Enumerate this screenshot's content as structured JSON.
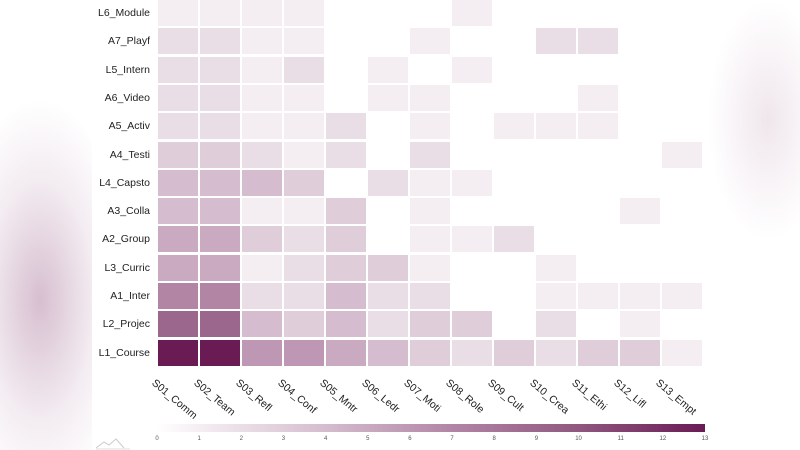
{
  "chart_data": {
    "type": "heatmap",
    "title": "",
    "xlabel": "",
    "ylabel": "",
    "x_categories": [
      "S01_Comm",
      "S02_Team",
      "S03_Refl",
      "S04_Conf",
      "S05_Mntr",
      "S06_Ledr",
      "S07_Moti",
      "S08_Role",
      "S09_Cult",
      "S10_Crea",
      "S11_Ethi",
      "S12_Lifl",
      "S13_Empt"
    ],
    "y_categories": [
      "L6_Module",
      "A7_Playf",
      "L5_Intern",
      "A6_Video",
      "A5_Activ",
      "A4_Testi",
      "L4_Capsto",
      "A3_Colla",
      "A2_Group",
      "L3_Curric",
      "A1_Inter",
      "L2_Projec",
      "L1_Course"
    ],
    "values": [
      [
        1,
        1,
        1,
        1,
        null,
        null,
        null,
        1,
        null,
        null,
        null,
        null,
        null
      ],
      [
        2,
        2,
        1,
        1,
        null,
        null,
        1,
        null,
        null,
        2,
        2,
        null,
        null
      ],
      [
        2,
        2,
        1,
        2,
        null,
        1,
        null,
        1,
        null,
        null,
        null,
        null,
        null
      ],
      [
        2,
        2,
        1,
        1,
        null,
        1,
        1,
        null,
        null,
        null,
        1,
        null,
        null
      ],
      [
        2,
        2,
        1,
        1,
        2,
        null,
        1,
        null,
        1,
        1,
        1,
        null,
        null
      ],
      [
        3,
        3,
        2,
        1,
        2,
        null,
        2,
        null,
        null,
        null,
        null,
        null,
        1
      ],
      [
        4,
        4,
        4,
        3,
        null,
        2,
        1,
        1,
        null,
        null,
        null,
        null,
        null
      ],
      [
        4,
        4,
        1,
        1,
        3,
        null,
        1,
        null,
        null,
        null,
        null,
        1,
        null
      ],
      [
        5,
        5,
        3,
        2,
        3,
        null,
        1,
        1,
        2,
        null,
        null,
        null,
        null
      ],
      [
        5,
        5,
        1,
        2,
        3,
        3,
        1,
        null,
        null,
        1,
        null,
        null,
        null
      ],
      [
        7,
        7,
        2,
        2,
        4,
        2,
        2,
        null,
        null,
        1,
        1,
        1,
        1
      ],
      [
        9,
        9,
        4,
        3,
        4,
        2,
        3,
        3,
        null,
        2,
        null,
        1,
        null
      ],
      [
        13,
        13,
        6,
        6,
        5,
        4,
        3,
        2,
        3,
        2,
        3,
        3,
        1
      ]
    ],
    "colorbar": {
      "min": 0,
      "max": 13,
      "ticks": [
        "0",
        "1",
        "2",
        "3",
        "4",
        "5",
        "6",
        "7",
        "8",
        "9",
        "10",
        "11",
        "12",
        "13"
      ],
      "position": "bottom",
      "color_low": "#ffffff",
      "color_high": "#6a1b54"
    },
    "grid": false,
    "legend_position": "bottom"
  }
}
